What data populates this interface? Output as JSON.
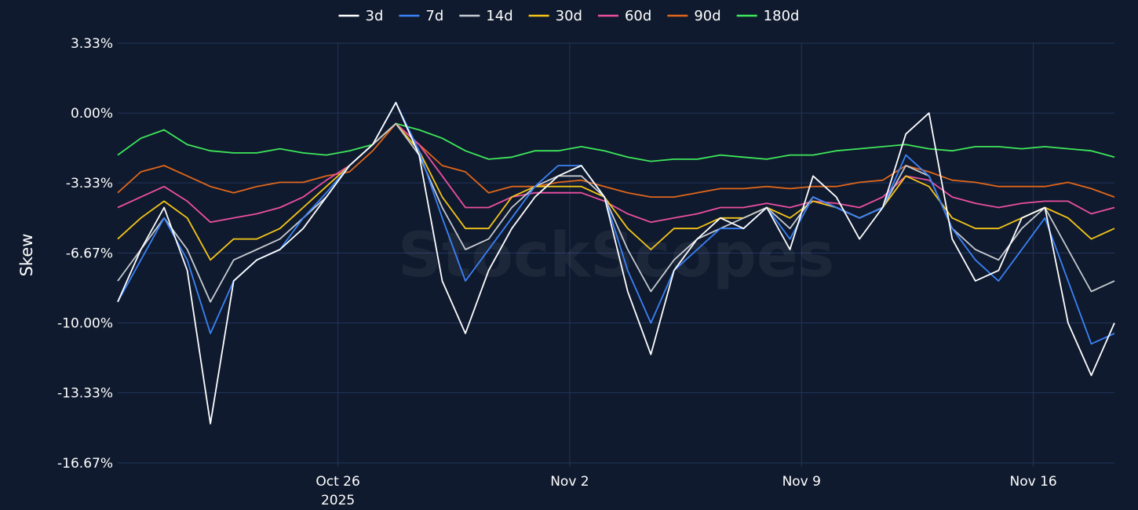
{
  "chart_data": {
    "type": "line",
    "title": "",
    "xlabel": "",
    "ylabel": "Skew",
    "watermark": "StockScopes",
    "legend_position": "top-center",
    "grid": true,
    "ylim": [
      -16.67,
      3.33
    ],
    "y_ticks": [
      3.33,
      0.0,
      -3.33,
      -6.67,
      -10.0,
      -13.33,
      -16.67
    ],
    "y_tick_labels": [
      "3.33%",
      "0.00%",
      "-3.33%",
      "-6.67%",
      "-10.00%",
      "-13.33%",
      "-16.67%"
    ],
    "x_range": [
      0,
      43
    ],
    "x_ticks": [
      9.5,
      19.5,
      29.5,
      39.5
    ],
    "x_tick_labels": [
      "Oct 26",
      "Nov 2",
      "Nov 9",
      "Nov 16"
    ],
    "x_year_label": "2025",
    "x_year_tick": 9.5,
    "colors": {
      "background": "#0f1a2e",
      "grid": "#22355a",
      "text": "#ffffff"
    },
    "x": [
      0,
      1,
      2,
      3,
      4,
      5,
      6,
      7,
      8,
      9,
      10,
      11,
      12,
      13,
      14,
      15,
      16,
      17,
      18,
      19,
      20,
      21,
      22,
      23,
      24,
      25,
      26,
      27,
      28,
      29,
      30,
      31,
      32,
      33,
      34,
      35,
      36,
      37,
      38,
      39,
      40,
      41,
      42,
      43
    ],
    "series": [
      {
        "name": "3d",
        "color": "#ffffff",
        "values": [
          -9.0,
          -6.5,
          -4.5,
          -7.5,
          -14.8,
          -8.0,
          -7.0,
          -6.5,
          -5.5,
          -4.0,
          -2.5,
          -1.5,
          0.5,
          -2.0,
          -8.0,
          -10.5,
          -7.5,
          -5.5,
          -4.0,
          -3.0,
          -2.5,
          -4.0,
          -8.5,
          -11.5,
          -7.5,
          -6.0,
          -5.0,
          -5.5,
          -4.5,
          -6.5,
          -3.0,
          -4.0,
          -6.0,
          -4.5,
          -1.0,
          0.0,
          -6.0,
          -8.0,
          -7.5,
          -5.0,
          -4.5,
          -10.0,
          -12.5,
          -10.0
        ]
      },
      {
        "name": "7d",
        "color": "#3b82f6",
        "values": [
          -9.0,
          -7.0,
          -5.0,
          -7.0,
          -10.5,
          -8.0,
          -7.0,
          -6.5,
          -5.0,
          -3.8,
          -2.5,
          -1.5,
          0.5,
          -1.8,
          -5.0,
          -8.0,
          -6.5,
          -5.0,
          -3.5,
          -2.5,
          -2.5,
          -4.0,
          -7.5,
          -10.0,
          -7.5,
          -6.5,
          -5.5,
          -5.5,
          -4.5,
          -6.0,
          -4.0,
          -4.5,
          -5.0,
          -4.5,
          -2.0,
          -3.0,
          -5.5,
          -7.0,
          -8.0,
          -6.5,
          -5.0,
          -8.0,
          -11.0,
          -10.5
        ]
      },
      {
        "name": "14d",
        "color": "#c7cbd1",
        "values": [
          -8.0,
          -6.5,
          -5.0,
          -6.5,
          -9.0,
          -7.0,
          -6.5,
          -6.0,
          -5.0,
          -4.0,
          -2.5,
          -1.5,
          -0.5,
          -2.0,
          -4.5,
          -6.5,
          -6.0,
          -4.5,
          -3.5,
          -3.0,
          -3.0,
          -4.0,
          -6.5,
          -8.5,
          -7.0,
          -6.0,
          -5.5,
          -5.0,
          -4.5,
          -5.5,
          -4.0,
          -4.5,
          -5.0,
          -4.5,
          -2.5,
          -3.0,
          -5.5,
          -6.5,
          -7.0,
          -5.5,
          -4.5,
          -6.5,
          -8.5,
          -8.0
        ]
      },
      {
        "name": "30d",
        "color": "#f5c518",
        "values": [
          -6.0,
          -5.0,
          -4.2,
          -5.0,
          -7.0,
          -6.0,
          -6.0,
          -5.5,
          -4.5,
          -3.5,
          -2.5,
          -1.5,
          -0.5,
          -1.8,
          -4.0,
          -5.5,
          -5.5,
          -4.0,
          -3.5,
          -3.5,
          -3.5,
          -4.0,
          -5.5,
          -6.5,
          -5.5,
          -5.5,
          -5.0,
          -5.0,
          -4.5,
          -5.0,
          -4.2,
          -4.5,
          -5.0,
          -4.5,
          -3.0,
          -3.5,
          -5.0,
          -5.5,
          -5.5,
          -5.0,
          -4.5,
          -5.0,
          -6.0,
          -5.5
        ]
      },
      {
        "name": "60d",
        "color": "#ec4fa0",
        "values": [
          -4.5,
          -4.0,
          -3.5,
          -4.2,
          -5.2,
          -5.0,
          -4.8,
          -4.5,
          -4.0,
          -3.2,
          -2.5,
          -1.5,
          -0.5,
          -1.5,
          -3.0,
          -4.5,
          -4.5,
          -4.0,
          -3.8,
          -3.8,
          -3.8,
          -4.2,
          -4.8,
          -5.2,
          -5.0,
          -4.8,
          -4.5,
          -4.5,
          -4.3,
          -4.5,
          -4.2,
          -4.3,
          -4.5,
          -4.0,
          -3.0,
          -3.2,
          -4.0,
          -4.3,
          -4.5,
          -4.3,
          -4.2,
          -4.2,
          -4.8,
          -4.5
        ]
      },
      {
        "name": "90d",
        "color": "#e0661a",
        "values": [
          -3.8,
          -2.8,
          -2.5,
          -3.0,
          -3.5,
          -3.8,
          -3.5,
          -3.3,
          -3.3,
          -3.0,
          -2.8,
          -1.8,
          -0.5,
          -1.5,
          -2.5,
          -2.8,
          -3.8,
          -3.5,
          -3.5,
          -3.3,
          -3.2,
          -3.5,
          -3.8,
          -4.0,
          -4.0,
          -3.8,
          -3.6,
          -3.6,
          -3.5,
          -3.6,
          -3.5,
          -3.5,
          -3.3,
          -3.2,
          -2.5,
          -2.8,
          -3.2,
          -3.3,
          -3.5,
          -3.5,
          -3.5,
          -3.3,
          -3.6,
          -4.0
        ]
      },
      {
        "name": "180d",
        "color": "#3ee85a",
        "values": [
          -2.0,
          -1.2,
          -0.8,
          -1.5,
          -1.8,
          -1.9,
          -1.9,
          -1.7,
          -1.9,
          -2.0,
          -1.8,
          -1.5,
          -0.5,
          -0.8,
          -1.2,
          -1.8,
          -2.2,
          -2.1,
          -1.8,
          -1.8,
          -1.6,
          -1.8,
          -2.1,
          -2.3,
          -2.2,
          -2.2,
          -2.0,
          -2.1,
          -2.2,
          -2.0,
          -2.0,
          -1.8,
          -1.7,
          -1.6,
          -1.5,
          -1.7,
          -1.8,
          -1.6,
          -1.6,
          -1.7,
          -1.6,
          -1.7,
          -1.8,
          -2.1
        ]
      }
    ]
  }
}
